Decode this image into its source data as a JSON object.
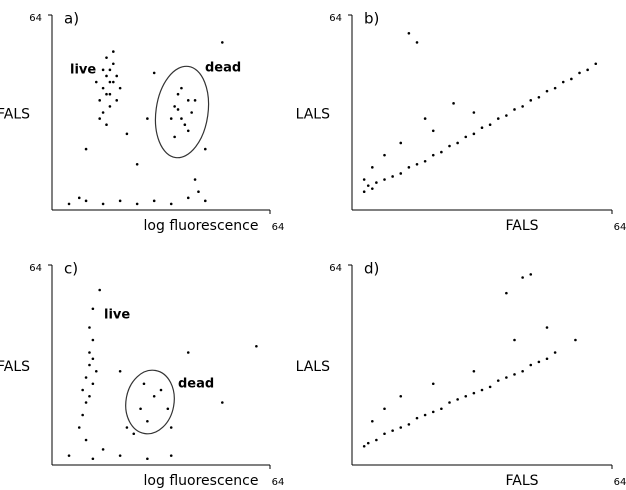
{
  "chart_data": [
    {
      "type": "scatter",
      "panel_label": "a)",
      "xlabel": "log fluorescence",
      "ylabel": "FALS",
      "annotations": [
        "live",
        "dead"
      ],
      "xlim": [
        0,
        64
      ],
      "ylim": [
        0,
        64
      ],
      "xticks": [
        64
      ],
      "yticks": [
        64
      ],
      "grid": false,
      "color": "#000000",
      "x": [
        15,
        16,
        17,
        18,
        14,
        16,
        17,
        19,
        15,
        18,
        16,
        20,
        13,
        17,
        18,
        15,
        19,
        16,
        14,
        17,
        36,
        38,
        40,
        37,
        39,
        41,
        35,
        38,
        40,
        37,
        42,
        36,
        5,
        10,
        15,
        20,
        25,
        30,
        35,
        40,
        45,
        8,
        42,
        43,
        10,
        25,
        28,
        22,
        45,
        30,
        50
      ],
      "values": [
        40,
        44,
        38,
        42,
        36,
        50,
        46,
        36,
        32,
        48,
        28,
        40,
        42,
        34,
        52,
        46,
        44,
        38,
        30,
        42,
        34,
        30,
        36,
        38,
        28,
        32,
        30,
        40,
        26,
        33,
        36,
        24,
        2,
        3,
        2,
        3,
        2,
        3,
        2,
        4,
        3,
        4,
        10,
        6,
        20,
        15,
        30,
        25,
        20,
        45,
        55
      ]
    },
    {
      "type": "scatter",
      "panel_label": "b)",
      "xlabel": "FALS",
      "ylabel": "LALS",
      "xlim": [
        0,
        64
      ],
      "ylim": [
        0,
        64
      ],
      "xticks": [
        64
      ],
      "yticks": [
        64
      ],
      "grid": false,
      "color": "#000000",
      "x": [
        3,
        4,
        5,
        6,
        8,
        10,
        12,
        14,
        16,
        18,
        20,
        22,
        24,
        26,
        28,
        30,
        32,
        34,
        36,
        38,
        40,
        42,
        44,
        46,
        48,
        50,
        52,
        54,
        56,
        58,
        60,
        3,
        5,
        8,
        12,
        18,
        20,
        14,
        16,
        25,
        30
      ],
      "values": [
        6,
        8,
        7,
        9,
        10,
        11,
        12,
        14,
        15,
        16,
        18,
        19,
        21,
        22,
        24,
        25,
        27,
        28,
        30,
        31,
        33,
        34,
        36,
        37,
        39,
        40,
        42,
        43,
        45,
        46,
        48,
        10,
        14,
        18,
        22,
        30,
        26,
        58,
        55,
        35,
        32
      ]
    },
    {
      "type": "scatter",
      "panel_label": "c)",
      "xlabel": "log fluorescence",
      "ylabel": "FALS",
      "annotations": [
        "live",
        "dead"
      ],
      "xlim": [
        0,
        64
      ],
      "ylim": [
        0,
        64
      ],
      "xticks": [
        64
      ],
      "yticks": [
        64
      ],
      "grid": false,
      "color": "#000000",
      "x": [
        10,
        11,
        12,
        9,
        11,
        12,
        10,
        13,
        9,
        11,
        12,
        14,
        8,
        10,
        12,
        11,
        26,
        30,
        28,
        32,
        27,
        34,
        24,
        35,
        5,
        12,
        20,
        28,
        35,
        15,
        20,
        40,
        50,
        60,
        22
      ],
      "values": [
        28,
        32,
        26,
        24,
        36,
        40,
        20,
        30,
        16,
        44,
        50,
        56,
        12,
        8,
        34,
        22,
        18,
        22,
        14,
        24,
        26,
        18,
        10,
        12,
        3,
        2,
        3,
        2,
        3,
        5,
        30,
        36,
        20,
        38,
        12
      ]
    },
    {
      "type": "scatter",
      "panel_label": "d)",
      "xlabel": "FALS",
      "ylabel": "LALS",
      "xlim": [
        0,
        64
      ],
      "ylim": [
        0,
        64
      ],
      "xticks": [
        64
      ],
      "yticks": [
        64
      ],
      "grid": false,
      "color": "#000000",
      "x": [
        3,
        4,
        6,
        8,
        10,
        12,
        14,
        16,
        18,
        20,
        22,
        24,
        26,
        28,
        30,
        32,
        34,
        36,
        38,
        40,
        42,
        44,
        46,
        48,
        50,
        5,
        8,
        12,
        20,
        30,
        40,
        38,
        42,
        44,
        48,
        55
      ],
      "values": [
        6,
        7,
        8,
        10,
        11,
        12,
        13,
        15,
        16,
        17,
        18,
        20,
        21,
        22,
        23,
        24,
        25,
        27,
        28,
        29,
        30,
        32,
        33,
        34,
        36,
        14,
        18,
        22,
        26,
        30,
        40,
        55,
        60,
        61,
        44,
        40
      ]
    }
  ]
}
